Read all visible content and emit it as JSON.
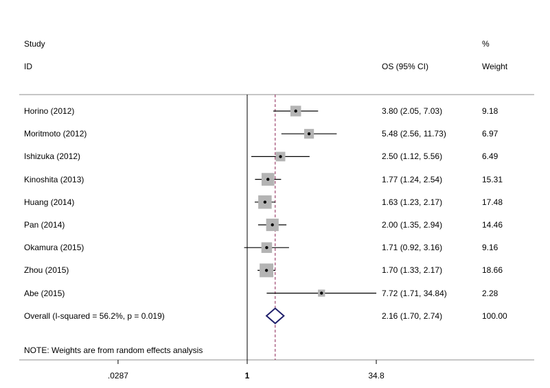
{
  "chart_data": {
    "type": "forest",
    "header": {
      "study_line1": "Study",
      "study_line2": "ID",
      "effect_label": "OS (95% CI)",
      "weight_line1": "%",
      "weight_line2": "Weight"
    },
    "studies": [
      {
        "label": "Horino (2012)",
        "est": 3.8,
        "lo": 2.05,
        "hi": 7.03,
        "text": "3.80 (2.05, 7.03)",
        "weight": 9.18,
        "weight_text": "9.18"
      },
      {
        "label": "Moritmoto (2012)",
        "est": 5.48,
        "lo": 2.56,
        "hi": 11.73,
        "text": "5.48 (2.56, 11.73)",
        "weight": 6.97,
        "weight_text": "6.97"
      },
      {
        "label": "Ishizuka (2012)",
        "est": 2.5,
        "lo": 1.12,
        "hi": 5.56,
        "text": "2.50 (1.12, 5.56)",
        "weight": 6.49,
        "weight_text": "6.49"
      },
      {
        "label": "Kinoshita (2013)",
        "est": 1.77,
        "lo": 1.24,
        "hi": 2.54,
        "text": "1.77 (1.24, 2.54)",
        "weight": 15.31,
        "weight_text": "15.31"
      },
      {
        "label": "Huang (2014)",
        "est": 1.63,
        "lo": 1.23,
        "hi": 2.17,
        "text": "1.63 (1.23, 2.17)",
        "weight": 17.48,
        "weight_text": "17.48"
      },
      {
        "label": "Pan (2014)",
        "est": 2.0,
        "lo": 1.35,
        "hi": 2.94,
        "text": "2.00 (1.35, 2.94)",
        "weight": 14.46,
        "weight_text": "14.46"
      },
      {
        "label": "Okamura (2015)",
        "est": 1.71,
        "lo": 0.92,
        "hi": 3.16,
        "text": "1.71 (0.92, 3.16)",
        "weight": 9.16,
        "weight_text": "9.16"
      },
      {
        "label": "Zhou (2015)",
        "est": 1.7,
        "lo": 1.33,
        "hi": 2.17,
        "text": "1.70 (1.33, 2.17)",
        "weight": 18.66,
        "weight_text": "18.66"
      },
      {
        "label": "Abe (2015)",
        "est": 7.72,
        "lo": 1.71,
        "hi": 34.84,
        "text": "7.72 (1.71, 34.84)",
        "weight": 2.28,
        "weight_text": "2.28"
      }
    ],
    "overall": {
      "label": "Overall  (I-squared = 56.2%, p = 0.019)",
      "est": 2.16,
      "lo": 1.7,
      "hi": 2.74,
      "text": "2.16 (1.70, 2.74)",
      "weight_text": "100.00"
    },
    "note": "NOTE: Weights are from random effects analysis",
    "x_scale": "log",
    "x_ticks": [
      {
        "value": 0.0287,
        "label": ".0287"
      },
      {
        "value": 1,
        "label": "1"
      },
      {
        "value": 34.8,
        "label": "34.8"
      }
    ],
    "xlim": [
      0.0287,
      34.8
    ],
    "null_line": 1,
    "colors": {
      "box": "#b4b4b4",
      "line": "#000000",
      "dashed": "#8b2252",
      "diamond": "#1f1f6b",
      "rule": "#8c8c8c"
    }
  }
}
